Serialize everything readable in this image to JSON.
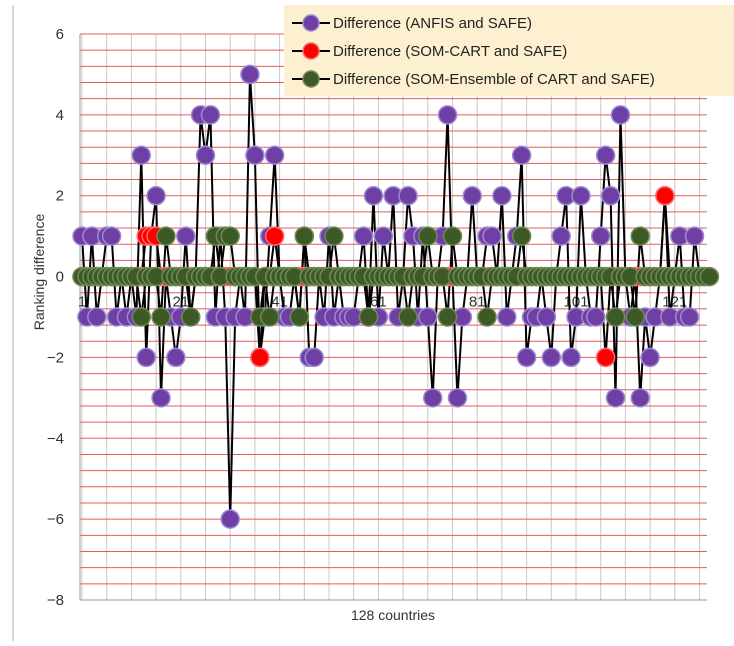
{
  "chart_data": {
    "type": "line",
    "xlabel": "128 countries",
    "ylabel": "Ranking difference",
    "ylim": [
      -8,
      6
    ],
    "y_ticks": [
      "6",
      "4",
      "2",
      "0",
      "−2",
      "−4",
      "−6",
      "−8"
    ],
    "y_tick_values": [
      6,
      4,
      2,
      0,
      -2,
      -4,
      -6,
      -8
    ],
    "x_tick_labels": [
      "1",
      "21",
      "41",
      "61",
      "81",
      "101",
      "121"
    ],
    "x_tick_values": [
      1,
      21,
      41,
      61,
      81,
      101,
      121
    ],
    "n": 128,
    "grid": "red horizontal every 0.4, gray vertical every 5 countries",
    "legend_position": "top-right",
    "series": [
      {
        "name": "Difference (ANFIS and SAFE)",
        "color": "#6f3fa6",
        "edge": "#9b8ccf",
        "values": [
          1,
          -1,
          1,
          -1,
          0,
          1,
          1,
          -1,
          0,
          -1,
          0,
          -1,
          3,
          -2,
          1,
          2,
          -3,
          0,
          -1,
          -2,
          -1,
          1,
          -1,
          0,
          4,
          3,
          4,
          -1,
          1,
          -1,
          -6,
          -1,
          0,
          -1,
          5,
          3,
          -2,
          -1,
          1,
          3,
          0,
          -1,
          -1,
          0,
          -1,
          1,
          -2,
          -2,
          0,
          -1,
          1,
          -1,
          0,
          -1,
          -1,
          -1,
          0,
          1,
          -1,
          2,
          -1,
          1,
          0,
          2,
          -1,
          0,
          2,
          1,
          -1,
          1,
          -1,
          -3,
          0,
          1,
          4,
          0,
          -3,
          -1,
          0,
          2,
          0,
          0,
          1,
          1,
          0,
          2,
          -1,
          0,
          1,
          3,
          -2,
          -1,
          -1,
          0,
          -1,
          -2,
          0,
          1,
          2,
          -2,
          -1,
          2,
          0,
          -1,
          -1,
          1,
          3,
          2,
          -3,
          4,
          0,
          -1,
          0,
          -3,
          -1,
          -2,
          -1,
          0,
          2,
          -1,
          0,
          1,
          -1,
          -1,
          1,
          0
        ]
      },
      {
        "name": "Difference (SOM-CART and SAFE)",
        "color": "#ff0000",
        "edge": "#ff6a6a",
        "values": [
          0,
          0,
          0,
          0,
          0,
          0,
          0,
          0,
          0,
          0,
          0,
          0,
          0,
          1,
          1,
          1,
          0,
          0,
          0,
          0,
          0,
          0,
          0,
          0,
          0,
          0,
          0,
          0,
          0,
          0,
          0,
          0,
          0,
          0,
          0,
          0,
          -2,
          0,
          0,
          1,
          0,
          0,
          0,
          0,
          0,
          0,
          0,
          0,
          0,
          0,
          0,
          0,
          0,
          0,
          0,
          0,
          0,
          0,
          -1,
          0,
          0,
          0,
          0,
          0,
          0,
          0,
          0,
          0,
          0,
          0,
          0,
          0,
          0,
          0,
          0,
          0,
          0,
          0,
          0,
          0,
          0,
          0,
          0,
          0,
          0,
          0,
          0,
          0,
          0,
          0,
          0,
          0,
          0,
          0,
          0,
          0,
          0,
          0,
          0,
          0,
          0,
          0,
          0,
          0,
          0,
          0,
          -2,
          0,
          0,
          0,
          0,
          0,
          0,
          0,
          0,
          0,
          0,
          0,
          2,
          0,
          0,
          0,
          0,
          0,
          0,
          0,
          0,
          0
        ]
      },
      {
        "name": "Difference (SOM-Ensemble of CART and SAFE)",
        "color": "#3d5a26",
        "edge": "#6e8a55",
        "values": [
          0,
          0,
          0,
          0,
          0,
          0,
          0,
          0,
          0,
          0,
          0,
          0,
          -1,
          0,
          0,
          0,
          -1,
          1,
          0,
          0,
          0,
          0,
          -1,
          0,
          0,
          0,
          0,
          1,
          0,
          1,
          1,
          0,
          0,
          0,
          0,
          0,
          -1,
          0,
          -1,
          0,
          0,
          0,
          0,
          0,
          -1,
          1,
          0,
          0,
          0,
          0,
          0,
          1,
          0,
          0,
          0,
          0,
          0,
          0,
          -1,
          0,
          0,
          0,
          0,
          0,
          0,
          0,
          -1,
          0,
          0,
          0,
          1,
          0,
          0,
          0,
          -1,
          1,
          0,
          0,
          0,
          0,
          0,
          0,
          -1,
          0,
          0,
          0,
          0,
          0,
          0,
          1,
          0,
          0,
          0,
          0,
          0,
          0,
          0,
          0,
          0,
          0,
          0,
          0,
          0,
          0,
          0,
          0,
          0,
          0,
          -1,
          0,
          0,
          0,
          -1,
          1,
          0,
          0,
          0,
          0,
          0,
          0,
          0,
          0,
          0,
          0,
          0,
          0,
          0,
          0
        ]
      }
    ]
  }
}
